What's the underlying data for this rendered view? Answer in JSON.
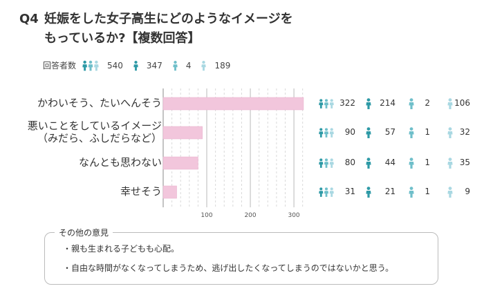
{
  "title": {
    "number": "Q4",
    "line1": "妊娠をした女子高生にどのようなイメージを",
    "line2": "もっているか?【複数回答】"
  },
  "respondents": {
    "label": "回答者数",
    "groups": [
      {
        "icon": "three-people-icon",
        "value": "540"
      },
      {
        "icon": "person-dark-icon",
        "value": "347"
      },
      {
        "icon": "person-mid-icon",
        "value": "4"
      },
      {
        "icon": "person-light-icon",
        "value": "189"
      }
    ]
  },
  "colors": {
    "bar": "#f2c6dc",
    "bar_border": "#e8b0cc",
    "grid": "#cccccc",
    "icon_dark": "#2e9aa6",
    "icon_mid": "#6fbfca",
    "icon_light": "#a9d8e2"
  },
  "chart_data": {
    "type": "bar",
    "orientation": "horizontal",
    "categories": [
      [
        "かわいそう、たいへんそう"
      ],
      [
        "悪いことをしているイメージ",
        "（みだら、ふしだらなど）"
      ],
      [
        "なんとも思わない"
      ],
      [
        "幸せそう"
      ]
    ],
    "values": [
      322,
      90,
      80,
      31
    ],
    "breakdown": [
      [
        322,
        214,
        2,
        106
      ],
      [
        90,
        57,
        1,
        32
      ],
      [
        80,
        44,
        1,
        35
      ],
      [
        31,
        21,
        1,
        9
      ]
    ],
    "xticks": [
      100,
      200,
      300
    ],
    "xlim": [
      0,
      330
    ],
    "grid": true
  },
  "other_opinions": {
    "title": "その他の意見",
    "items": [
      "・親も生まれる子どもも心配。",
      "・自由な時間がなくなってしまうため、逃げ出したくなってしまうのではないかと思う。"
    ]
  }
}
